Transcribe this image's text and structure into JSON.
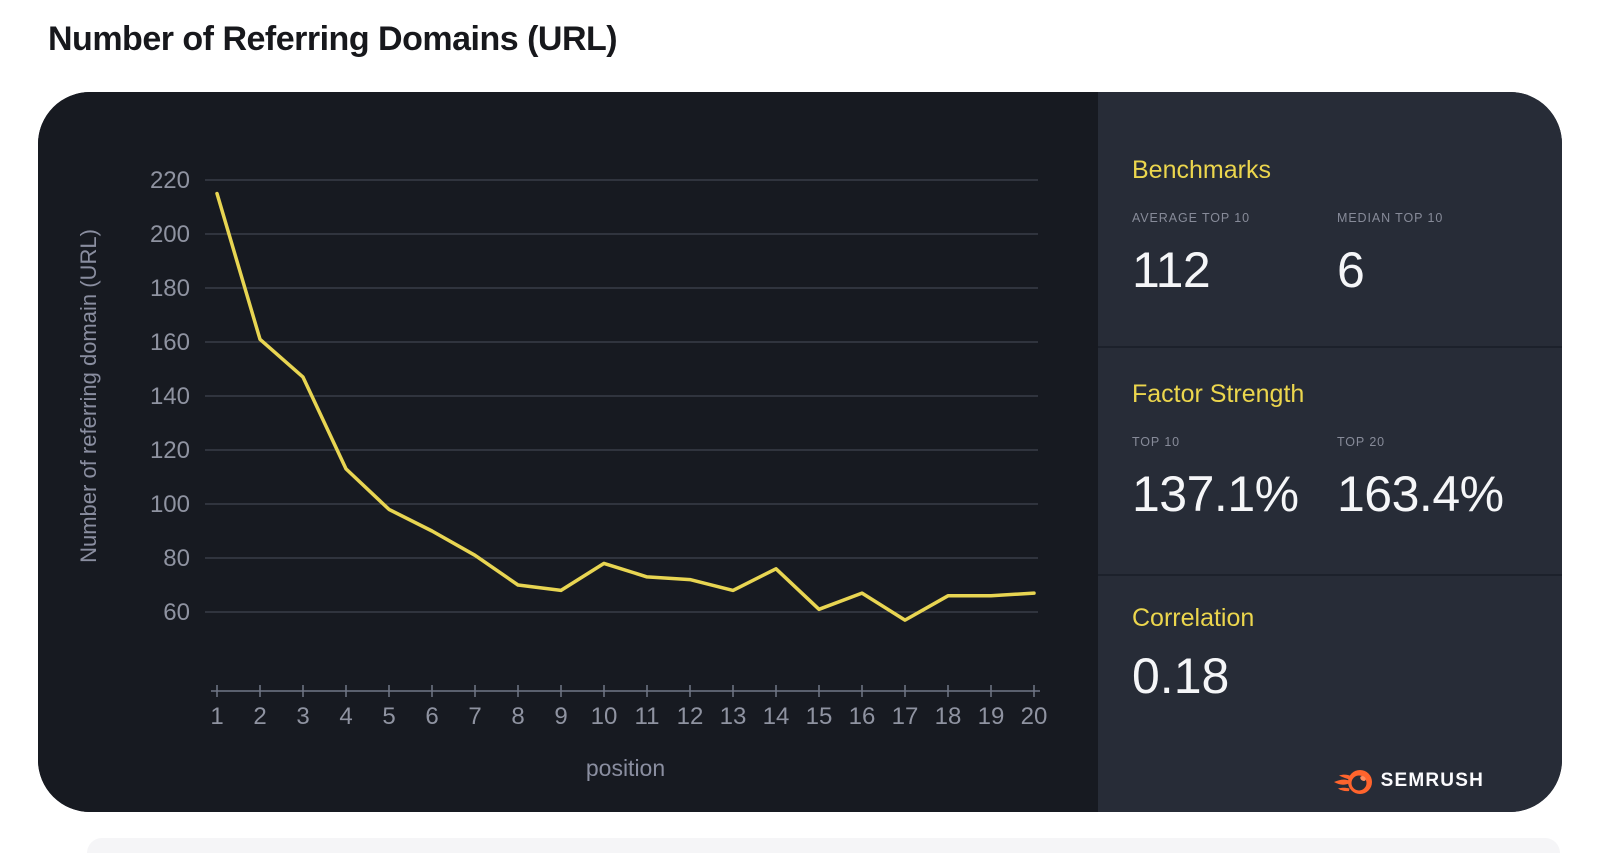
{
  "page": {
    "title": "Number of Referring Domains (URL)"
  },
  "chart_data": {
    "type": "line",
    "title": "Number of Referring Domains (URL)",
    "xlabel": "position",
    "ylabel": "Number of referring domain (URL)",
    "x": [
      1,
      2,
      3,
      4,
      5,
      6,
      7,
      8,
      9,
      10,
      11,
      12,
      13,
      14,
      15,
      16,
      17,
      18,
      19,
      20
    ],
    "values": [
      215,
      161,
      147,
      113,
      98,
      90,
      81,
      70,
      68,
      78,
      73,
      72,
      68,
      76,
      61,
      67,
      57,
      66,
      66,
      67
    ],
    "yticks": [
      220,
      200,
      180,
      160,
      140,
      120,
      100,
      80,
      60
    ],
    "xticks": [
      1,
      2,
      3,
      4,
      5,
      6,
      7,
      8,
      9,
      10,
      11,
      12,
      13,
      14,
      15,
      16,
      17,
      18,
      19,
      20
    ],
    "ylim": [
      60,
      220
    ],
    "grid": true,
    "legend": "none",
    "line_color": "#e8d552",
    "grid_color": "#4a4f5c",
    "axis_color": "#717787",
    "tick_label_color": "#8f93a1",
    "axis_title_color": "#8a8ea0",
    "plot_bg": "#171a21"
  },
  "panel": {
    "sections": [
      {
        "title": "Benchmarks",
        "stats": [
          {
            "label": "AVERAGE TOP 10",
            "value": "112"
          },
          {
            "label": "MEDIAN TOP 10",
            "value": "6"
          }
        ]
      },
      {
        "title": "Factor Strength",
        "stats": [
          {
            "label": "TOP 10",
            "value": "137.1%"
          },
          {
            "label": "TOP 20",
            "value": "163.4%"
          }
        ]
      },
      {
        "title": "Correlation",
        "value": "0.18"
      }
    ],
    "logo": {
      "text": "SEMRUSH",
      "icon": "semrush-flame-icon",
      "icon_color": "#ff642d"
    }
  },
  "colors": {
    "page_bg": "#ffffff",
    "card_chart_bg": "#171a21",
    "card_panel_bg": "#272c37",
    "accent_yellow": "#ecd64d",
    "value_white": "#f5f6f8",
    "title_black": "#17181c"
  }
}
